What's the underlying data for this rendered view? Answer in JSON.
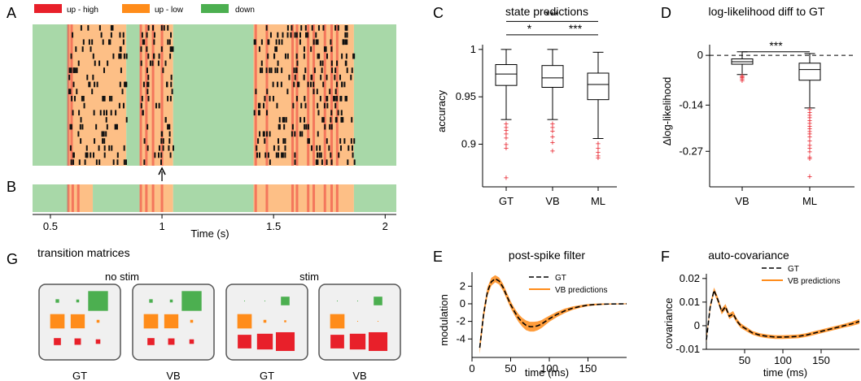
{
  "panels": {
    "A": "A",
    "B": "B",
    "C": "C",
    "D": "D",
    "E": "E",
    "F": "F",
    "G": "G"
  },
  "colors": {
    "up_high": "#e8202a",
    "up_low": "#ff8c1a",
    "down": "#4caf50",
    "bg_up": "#fdbf86",
    "bg_down": "#a8d8a8",
    "spike": "#111111",
    "outlier": "#e8202a",
    "fit": "#ff8c1a"
  },
  "chart_data": [
    {
      "id": "A",
      "type": "raster",
      "legend": [
        {
          "name": "up - high",
          "color": "#e8202a"
        },
        {
          "name": "up - low",
          "color": "#ff8c1a"
        },
        {
          "name": "down",
          "color": "#4caf50"
        }
      ],
      "xlim": [
        0.42,
        2.05
      ],
      "n_neurons": 20,
      "states": [
        [
          0.42,
          0.58,
          "down"
        ],
        [
          0.58,
          0.84,
          "up_low"
        ],
        [
          0.84,
          0.9,
          "down"
        ],
        [
          0.9,
          1.05,
          "up_low"
        ],
        [
          1.05,
          1.41,
          "down"
        ],
        [
          1.41,
          1.86,
          "up_low"
        ],
        [
          1.86,
          2.05,
          "down"
        ]
      ],
      "high_bands": [
        0.58,
        0.595,
        0.905,
        0.93,
        0.96,
        1.0,
        1.42,
        1.47,
        1.585,
        1.605,
        1.655,
        1.68,
        1.73,
        1.76,
        1.785
      ],
      "arrow_x": 1.0
    },
    {
      "id": "B",
      "type": "state_bar",
      "xlim": [
        0.42,
        2.05
      ],
      "xticks": [
        0.5,
        1,
        1.5,
        2
      ],
      "xtick_labels": [
        "0.5",
        "1",
        "1.5",
        "2"
      ],
      "xlabel": "Time (s)",
      "states": [
        [
          0.42,
          0.58,
          "down"
        ],
        [
          0.58,
          0.69,
          "up_low"
        ],
        [
          0.69,
          0.9,
          "down"
        ],
        [
          0.9,
          1.05,
          "up_low"
        ],
        [
          1.05,
          1.41,
          "down"
        ],
        [
          1.41,
          1.86,
          "up_low"
        ],
        [
          1.86,
          2.05,
          "down"
        ]
      ],
      "high_bands": [
        0.58,
        0.6,
        0.625,
        0.905,
        0.93,
        0.96,
        1.0,
        1.42,
        1.47,
        1.585,
        1.605,
        1.655,
        1.68,
        1.73,
        1.76,
        1.785
      ]
    },
    {
      "id": "C",
      "type": "box",
      "title": "state predictions",
      "ylabel": "accuracy",
      "categories": [
        "GT",
        "VB",
        "ML"
      ],
      "ylim": [
        0.855,
        1.005
      ],
      "yticks": [
        0.9,
        0.95,
        1
      ],
      "ytick_labels": [
        "0.9",
        "0.95",
        "1"
      ],
      "boxes": [
        {
          "whislo": 0.926,
          "q1": 0.962,
          "med": 0.974,
          "q3": 0.984,
          "whishi": 1.0,
          "fliers": [
            0.922,
            0.918,
            0.915,
            0.911,
            0.907,
            0.9,
            0.896,
            0.865
          ]
        },
        {
          "whislo": 0.926,
          "q1": 0.96,
          "med": 0.97,
          "q3": 0.983,
          "whishi": 1.0,
          "fliers": [
            0.922,
            0.918,
            0.914,
            0.908,
            0.902,
            0.893
          ]
        },
        {
          "whislo": 0.906,
          "q1": 0.947,
          "med": 0.963,
          "q3": 0.975,
          "whishi": 0.997,
          "fliers": [
            0.901,
            0.896,
            0.892,
            0.888,
            0.886
          ]
        }
      ],
      "significance": [
        {
          "from": 0,
          "to": 2,
          "label": "***",
          "y": 1.0295
        },
        {
          "from": 0,
          "to": 1,
          "label": "*",
          "y": 1.0154
        },
        {
          "from": 1,
          "to": 2,
          "label": "***",
          "y": 1.0154
        }
      ]
    },
    {
      "id": "D",
      "type": "box",
      "title": "log-likelihood diff to GT",
      "ylabel": "Δlog-likelihood",
      "categories": [
        "VB",
        "ML"
      ],
      "ylim": [
        -0.37,
        0.03
      ],
      "yticks": [
        0,
        -0.14,
        -0.27
      ],
      "ytick_labels": [
        "0",
        "-0.14",
        "-0.27"
      ],
      "zero_line": true,
      "boxes": [
        {
          "whislo": -0.054,
          "q1": -0.025,
          "med": -0.018,
          "q3": -0.01,
          "whishi": 0.01,
          "fliers": [
            -0.057,
            -0.06,
            -0.063,
            -0.066,
            -0.07
          ]
        },
        {
          "whislo": -0.148,
          "q1": -0.07,
          "med": -0.04,
          "q3": -0.022,
          "whishi": 0.005,
          "fliers": [
            -0.152,
            -0.16,
            -0.168,
            -0.175,
            -0.183,
            -0.19,
            -0.198,
            -0.205,
            -0.213,
            -0.22,
            -0.228,
            -0.24,
            -0.252,
            -0.26,
            -0.27,
            -0.285,
            -0.29,
            -0.34
          ]
        }
      ],
      "significance": [
        {
          "from": 0,
          "to": 1,
          "label": "***",
          "y": 0.01
        }
      ]
    },
    {
      "id": "E",
      "type": "line",
      "title": "post-spike filter",
      "xlabel": "time (ms)",
      "ylabel": "modulation",
      "xlim": [
        0,
        200
      ],
      "ylim": [
        -6.1,
        3.6
      ],
      "xticks": [
        0,
        50,
        100,
        150
      ],
      "yticks": [
        2,
        0,
        -2,
        -4
      ],
      "series": [
        {
          "name": "GT",
          "style": "dashed",
          "x": [
            10,
            15,
            20,
            25,
            30,
            35,
            40,
            45,
            50,
            55,
            60,
            65,
            70,
            75,
            80,
            85,
            90,
            95,
            100,
            110,
            120,
            130,
            140,
            150,
            160,
            170,
            180,
            190,
            200
          ],
          "y": [
            -5.0,
            -1.2,
            1.4,
            2.5,
            2.85,
            2.6,
            1.9,
            0.9,
            -0.1,
            -0.9,
            -1.6,
            -2.1,
            -2.45,
            -2.6,
            -2.6,
            -2.5,
            -2.3,
            -2.0,
            -1.7,
            -1.2,
            -0.8,
            -0.5,
            -0.3,
            -0.15,
            -0.08,
            -0.04,
            -0.02,
            -0.01,
            0
          ]
        },
        {
          "name": "VB predictions",
          "style": "band",
          "x": [
            10,
            15,
            20,
            25,
            30,
            35,
            40,
            45,
            50,
            55,
            60,
            65,
            70,
            75,
            80,
            85,
            90,
            95,
            100,
            110,
            120,
            130,
            140,
            150,
            160,
            170,
            180,
            190,
            200
          ],
          "y": [
            -5.0,
            -1.2,
            1.4,
            2.5,
            2.85,
            2.6,
            1.9,
            0.9,
            -0.1,
            -0.9,
            -1.6,
            -2.1,
            -2.45,
            -2.6,
            -2.6,
            -2.5,
            -2.3,
            -2.0,
            -1.7,
            -1.2,
            -0.8,
            -0.5,
            -0.3,
            -0.15,
            -0.08,
            -0.04,
            -0.02,
            -0.01,
            0
          ],
          "spread": [
            0.7,
            0.6,
            0.5,
            0.45,
            0.4,
            0.4,
            0.4,
            0.4,
            0.4,
            0.4,
            0.45,
            0.5,
            0.55,
            0.55,
            0.55,
            0.5,
            0.45,
            0.4,
            0.35,
            0.3,
            0.25,
            0.2,
            0.15,
            0.12,
            0.1,
            0.08,
            0.06,
            0.05,
            0.05
          ]
        }
      ]
    },
    {
      "id": "F",
      "type": "line",
      "title": "auto-covariance",
      "xlabel": "time (ms)",
      "ylabel": "covariance",
      "xlim": [
        0,
        200
      ],
      "ylim": [
        -0.01,
        0.022
      ],
      "xticks": [
        50,
        100,
        150
      ],
      "yticks": [
        0.02,
        0.01,
        0,
        -0.01
      ],
      "ytick_labels": [
        "0.02",
        "0.01",
        "0",
        "-0.01"
      ],
      "series": [
        {
          "name": "GT",
          "style": "dashed",
          "x": [
            0,
            5,
            10,
            15,
            20,
            25,
            30,
            35,
            40,
            45,
            50,
            55,
            60,
            70,
            80,
            90,
            100,
            110,
            120,
            130,
            140,
            150,
            160,
            170,
            180,
            190,
            200
          ],
          "y": [
            -0.006,
            0.008,
            0.015,
            0.011,
            0.006,
            0.008,
            0.004,
            0.005,
            0.002,
            0.0,
            -0.001,
            -0.002,
            -0.003,
            -0.004,
            -0.0045,
            -0.0048,
            -0.0048,
            -0.0047,
            -0.0045,
            -0.004,
            -0.0032,
            -0.0024,
            -0.0016,
            -0.0008,
            0.0,
            0.0008,
            0.0018
          ]
        },
        {
          "name": "VB predictions",
          "style": "band",
          "x": [
            0,
            5,
            10,
            15,
            20,
            25,
            30,
            35,
            40,
            45,
            50,
            55,
            60,
            70,
            80,
            90,
            100,
            110,
            120,
            130,
            140,
            150,
            160,
            170,
            180,
            190,
            200
          ],
          "y": [
            -0.006,
            0.008,
            0.015,
            0.011,
            0.006,
            0.008,
            0.004,
            0.005,
            0.002,
            0.0,
            -0.001,
            -0.002,
            -0.003,
            -0.004,
            -0.0045,
            -0.0048,
            -0.0048,
            -0.0047,
            -0.0045,
            -0.004,
            -0.0032,
            -0.0024,
            -0.0016,
            -0.0008,
            0.0,
            0.0008,
            0.0018
          ],
          "spread": [
            0.001,
            0.0012,
            0.0012,
            0.0012,
            0.0012,
            0.0012,
            0.0012,
            0.0012,
            0.001,
            0.001,
            0.0009,
            0.0009,
            0.0008,
            0.0008,
            0.0008,
            0.0008,
            0.0008,
            0.0008,
            0.0008,
            0.0008,
            0.0008,
            0.0008,
            0.0008,
            0.0008,
            0.0008,
            0.0009,
            0.001
          ]
        }
      ]
    },
    {
      "id": "G",
      "type": "matrix_hinton",
      "title": "transition matrices",
      "group_labels": [
        "no stim",
        "stim"
      ],
      "matrix_labels": [
        "GT",
        "VB",
        "GT",
        "VB"
      ],
      "row_colors": [
        "#4caf50",
        "#ff8c1a",
        "#e8202a"
      ],
      "matrices": [
        [
          [
            0.03,
            0.02,
            0.95
          ],
          [
            0.5,
            0.48,
            0.02
          ],
          [
            0.12,
            0.1,
            0.05
          ]
        ],
        [
          [
            0.03,
            0.02,
            0.95
          ],
          [
            0.5,
            0.48,
            0.02
          ],
          [
            0.12,
            0.1,
            0.05
          ]
        ],
        [
          [
            0.001,
            0.001,
            0.18
          ],
          [
            0.5,
            0.02,
            0.01
          ],
          [
            0.45,
            0.6,
            0.85
          ]
        ],
        [
          [
            0.001,
            0.001,
            0.18
          ],
          [
            0.5,
            0.001,
            0.001
          ],
          [
            0.45,
            0.6,
            0.85
          ]
        ]
      ]
    }
  ]
}
